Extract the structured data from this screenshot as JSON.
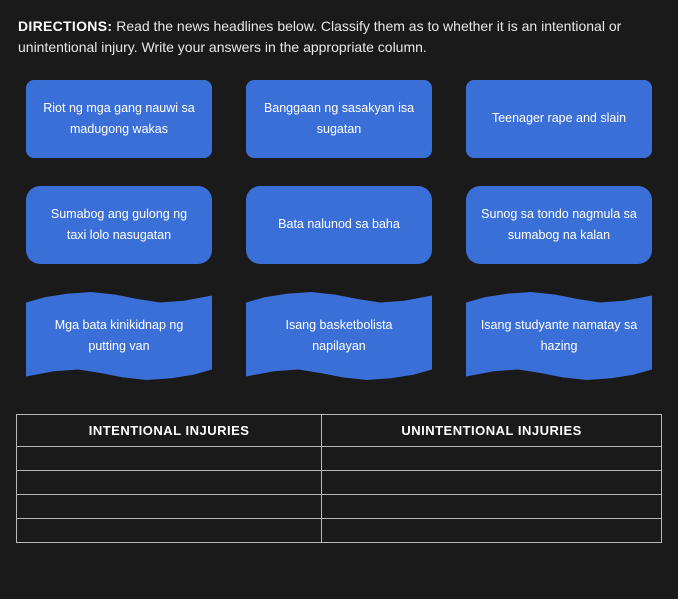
{
  "directions": {
    "label": "DIRECTIONS:",
    "text": "Read the news headlines below. Classify them as to whether it is an intentional or unintentional injury. Write your answers in the appropriate column."
  },
  "colors": {
    "background": "#1a1a1a",
    "card_bg": "#3b6fd8",
    "card_text": "#ffffff",
    "table_border": "#b9b9b9",
    "body_text": "#e8e8e8"
  },
  "typography": {
    "directions_fontsize": 14,
    "card_fontsize": 12.5,
    "th_fontsize": 13
  },
  "grid": {
    "columns": 3,
    "rows": 3,
    "column_gap": 34,
    "row_gap": 28,
    "row_shapes": [
      "rect",
      "round",
      "wave"
    ]
  },
  "cards": [
    {
      "text": "Riot ng mga gang nauwi sa madugong wakas"
    },
    {
      "text": "Banggaan ng sasakyan isa sugatan"
    },
    {
      "text": "Teenager rape and slain"
    },
    {
      "text": "Sumabog ang gulong ng taxi lolo nasugatan"
    },
    {
      "text": "Bata nalunod sa baha"
    },
    {
      "text": "Sunog sa tondo nagmula sa sumabog na kalan"
    },
    {
      "text": "Mga bata kinikidnap ng putting van"
    },
    {
      "text": "Isang basketbolista napilayan"
    },
    {
      "text": "Isang studyante namatay sa hazing"
    }
  ],
  "table": {
    "columns": [
      "INTENTIONAL INJURIES",
      "UNINTENTIONAL INJURIES"
    ],
    "empty_rows": 4
  }
}
